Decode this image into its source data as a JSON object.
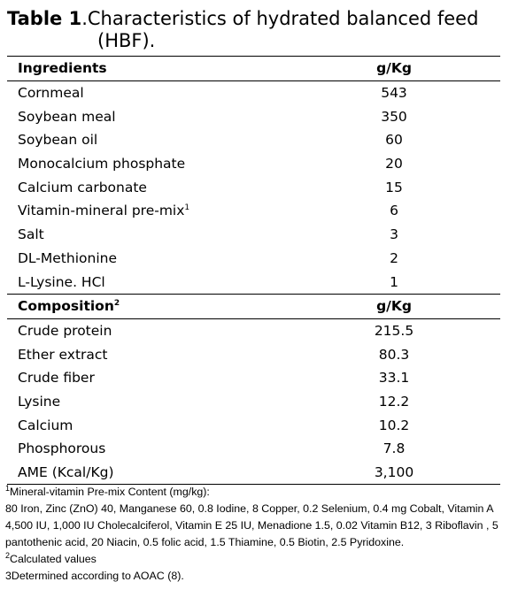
{
  "caption": {
    "label": "Table 1",
    "text": ".Characteristics of hydrated balanced feed",
    "text_cont": "(HBF)."
  },
  "table": {
    "sections": [
      {
        "header": {
          "name": "Ingredients",
          "unit": "g/Kg",
          "sup": ""
        },
        "rows": [
          {
            "name": "Cornmeal",
            "value": "543",
            "sup": ""
          },
          {
            "name": "Soybean meal",
            "value": "350",
            "sup": ""
          },
          {
            "name": "Soybean oil",
            "value": "60",
            "sup": ""
          },
          {
            "name": "Monocalcium phosphate",
            "value": "20",
            "sup": ""
          },
          {
            "name": "Calcium carbonate",
            "value": "15",
            "sup": ""
          },
          {
            "name": "Vitamin-mineral pre-mix",
            "value": "6",
            "sup": "1"
          },
          {
            "name": "Salt",
            "value": "3",
            "sup": ""
          },
          {
            "name": "DL-Methionine",
            "value": "2",
            "sup": ""
          },
          {
            "name": "L-Lysine. HCl",
            "value": "1",
            "sup": ""
          }
        ]
      },
      {
        "header": {
          "name": "Composition",
          "unit": "g/Kg",
          "sup": "2"
        },
        "rows": [
          {
            "name": "Crude protein",
            "value": "215.5",
            "sup": ""
          },
          {
            "name": "Ether extract",
            "value": "80.3",
            "sup": ""
          },
          {
            "name": "Crude fiber",
            "value": "33.1",
            "sup": ""
          },
          {
            "name": "Lysine",
            "value": "12.2",
            "sup": ""
          },
          {
            "name": "Calcium",
            "value": "10.2",
            "sup": ""
          },
          {
            "name": "Phosphorous",
            "value": "7.8",
            "sup": ""
          },
          {
            "name": "AME (Kcal/Kg)",
            "value": "3,100",
            "sup": ""
          }
        ]
      }
    ]
  },
  "notes": {
    "note1_sup": "1",
    "note1_title": "Mineral-vitamin  Pre-mix Content (mg/kg):",
    "note1_body": "80 Iron, Zinc (ZnO) 40, Manganese 60, 0.8 Iodine, 8 Copper, 0.2 Selenium, 0.4 mg Cobalt, Vitamin A 4,500 IU, 1,000 IU Cholecalciferol, Vitamin E 25 IU, Menadione 1.5, 0.02 Vitamin B12, 3 Riboflavin ,  5 pantothenic acid, 20 Niacin, 0.5 folic acid, 1.5 Thiamine, 0.5 Biotin, 2.5 Pyridoxine.",
    "note2_sup": "2",
    "note2_text": "Calculated values",
    "note3_text": "3Determined according to AOAC (8)."
  }
}
